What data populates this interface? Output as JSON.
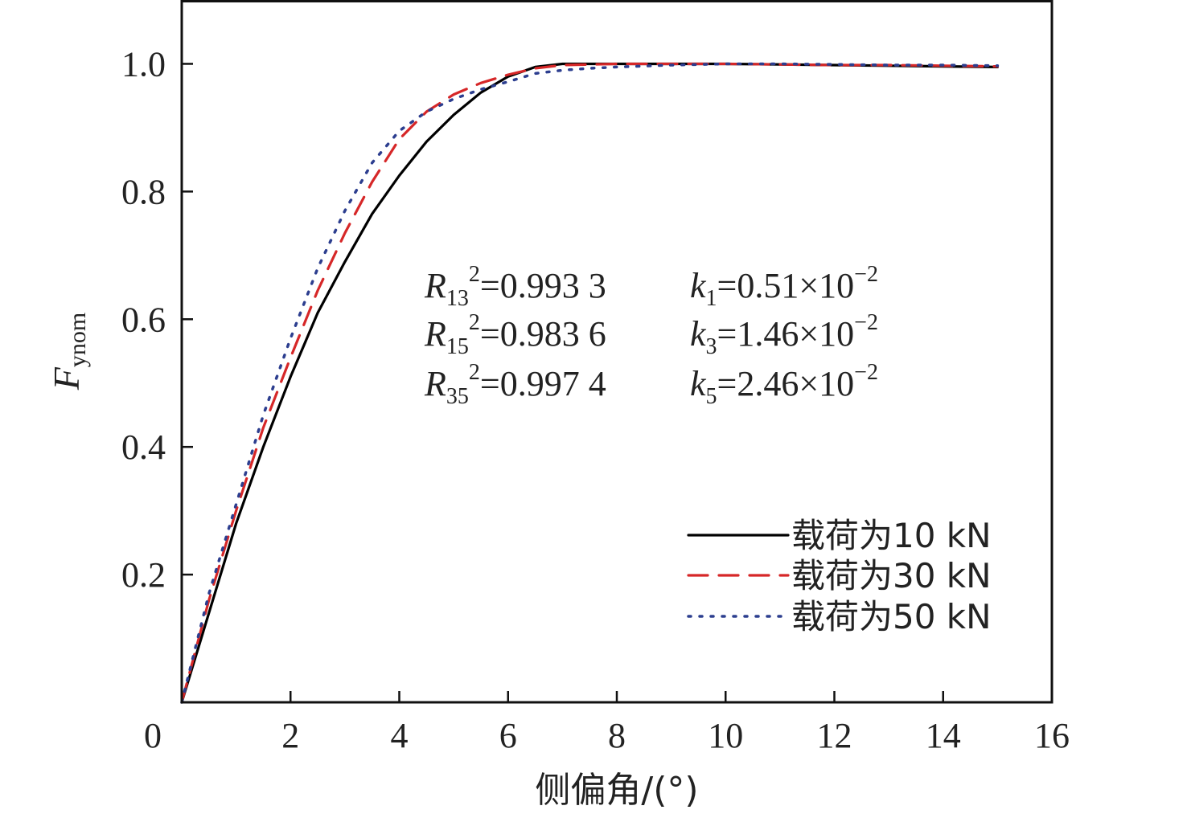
{
  "chart_data": {
    "type": "line",
    "xlabel": "侧偏角/(°)",
    "ylabel": "F",
    "ylabel_sub": "ynom",
    "xlim": [
      0,
      16
    ],
    "ylim": [
      0,
      1.1
    ],
    "x_ticks": [
      "0",
      "2",
      "4",
      "6",
      "8",
      "10",
      "12",
      "14",
      "16"
    ],
    "x_tick_values": [
      0,
      2,
      4,
      6,
      8,
      10,
      12,
      14,
      16
    ],
    "y_ticks": [
      "0.2",
      "0.4",
      "0.6",
      "0.8",
      "1.0"
    ],
    "y_tick_values": [
      0.2,
      0.4,
      0.6,
      0.8,
      1.0
    ],
    "grid": false,
    "legend_position": "lower-right",
    "series": [
      {
        "name": "载荷为10 kN",
        "color": "#000000",
        "style": "solid",
        "x": [
          0,
          0.5,
          1,
          1.5,
          2,
          2.5,
          3,
          3.5,
          4,
          4.5,
          5,
          5.5,
          6,
          6.5,
          7,
          8,
          9,
          10,
          11,
          12,
          13,
          14,
          15
        ],
        "y": [
          0,
          0.14,
          0.28,
          0.4,
          0.51,
          0.61,
          0.69,
          0.765,
          0.825,
          0.878,
          0.92,
          0.955,
          0.98,
          0.995,
          1.0,
          1.0,
          1.0,
          1.0,
          0.999,
          0.998,
          0.997,
          0.996,
          0.995
        ]
      },
      {
        "name": "载荷为30 kN",
        "color": "#d62728",
        "style": "dashed",
        "x": [
          0,
          0.5,
          1,
          1.5,
          2,
          2.5,
          3,
          3.5,
          4,
          4.5,
          5,
          5.5,
          6,
          6.5,
          7,
          8,
          9,
          10,
          11,
          12,
          13,
          14,
          15
        ],
        "y": [
          0,
          0.16,
          0.3,
          0.43,
          0.54,
          0.645,
          0.735,
          0.815,
          0.882,
          0.925,
          0.952,
          0.97,
          0.983,
          0.993,
          0.998,
          1.0,
          1.0,
          1.0,
          0.999,
          0.998,
          0.998,
          0.997,
          0.996
        ]
      },
      {
        "name": "载荷为50 kN",
        "color": "#2c3e8f",
        "style": "dotted",
        "x": [
          0,
          0.5,
          1,
          1.5,
          2,
          2.5,
          3,
          3.5,
          4,
          4.5,
          5,
          5.5,
          6,
          6.5,
          7,
          7.5,
          8,
          9,
          10,
          11,
          12,
          13,
          14,
          15
        ],
        "y": [
          0,
          0.17,
          0.31,
          0.45,
          0.57,
          0.68,
          0.77,
          0.845,
          0.895,
          0.925,
          0.945,
          0.96,
          0.972,
          0.985,
          0.99,
          0.993,
          0.995,
          0.998,
          1.0,
          1.0,
          0.999,
          0.998,
          0.998,
          0.997
        ]
      }
    ],
    "annotations": [
      {
        "r_main": "R",
        "r_sub": "13",
        "r_sup": "2",
        "r_value": "=0.993 3",
        "k_main": "k",
        "k_sub": "1",
        "k_value": "=0.51×10",
        "k_exp": "−2"
      },
      {
        "r_main": "R",
        "r_sub": "15",
        "r_sup": "2",
        "r_value": "=0.983 6",
        "k_main": "k",
        "k_sub": "3",
        "k_value": "=1.46×10",
        "k_exp": "−2"
      },
      {
        "r_main": "R",
        "r_sub": "35",
        "r_sup": "2",
        "r_value": "=0.997 4",
        "k_main": "k",
        "k_sub": "5",
        "k_value": "=2.46×10",
        "k_exp": "−2"
      }
    ]
  }
}
